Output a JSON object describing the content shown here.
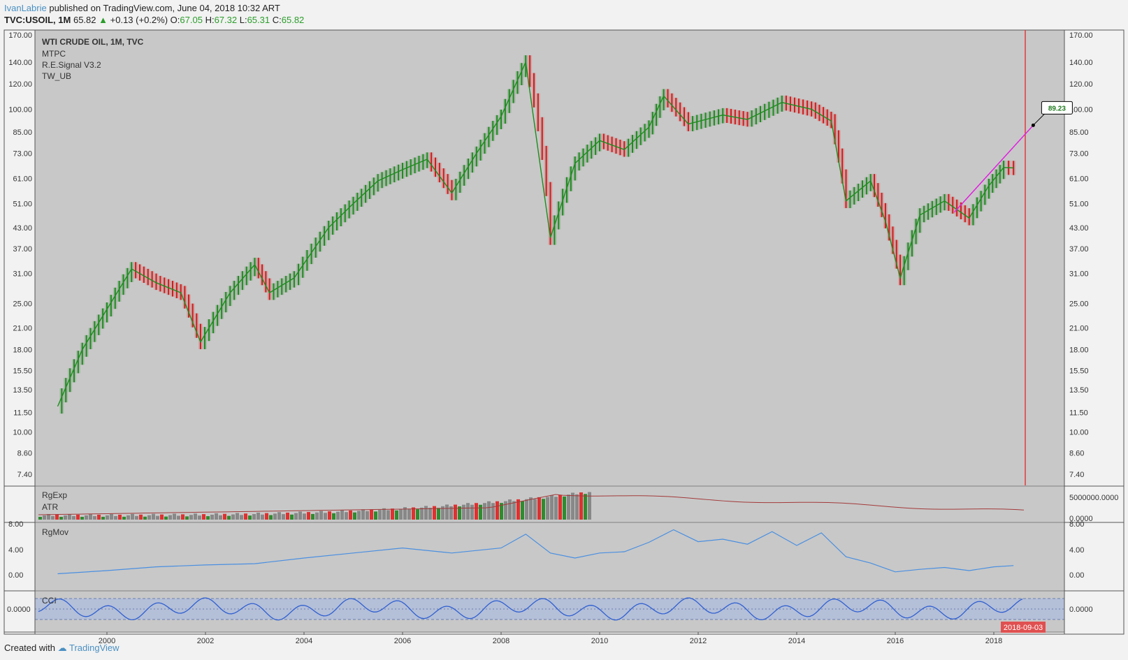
{
  "header": {
    "author": "IvanLabrie",
    "published_text": "published on TradingView.com, June 04, 2018 10:32 ART",
    "symbol_line_prefix": "TVC:USOIL, 1M",
    "last": "65.82",
    "change": "+0.13 (+0.2%)",
    "o_label": "O:",
    "o_value": "67.05",
    "h_label": "H:",
    "h_value": "67.32",
    "l_label": "L:",
    "l_value": "65.31",
    "c_label": "C:",
    "c_value": "65.82"
  },
  "legend": {
    "title": "WTI CRUDE OIL, 1M, TVC",
    "indicators": [
      "MTPC",
      "R.E.Signal V3.2",
      "TW_UB"
    ]
  },
  "panes": {
    "rgexp_label": "RgExp",
    "atr_label": "ATR",
    "rgexp_ticks": [
      "5000000.0000",
      "0.0000"
    ],
    "rgmov_label": "RgMov",
    "rgmov_ticks": [
      "8.00",
      "4.00",
      "0.00"
    ],
    "cci_label": "CCI",
    "cci_tick": "0.0000"
  },
  "target_label": "89.23",
  "date_badge": "2018-09-03",
  "footer": {
    "created_with": "Created with",
    "brand": "TradingView"
  },
  "colors": {
    "up": "#1e8c1e",
    "down": "#d01c1c",
    "neutral": "#222222",
    "target": "#e020e0",
    "vline": "#e03a3a",
    "rgmov": "#4a8fe0",
    "atr": "#a33a3a"
  },
  "chart_data": {
    "type": "line",
    "price_axis_ticks": [
      "170.00",
      "140.00",
      "120.00",
      "100.00",
      "85.00",
      "73.00",
      "61.00",
      "51.00",
      "43.00",
      "37.00",
      "31.00",
      "25.00",
      "21.00",
      "18.00",
      "15.50",
      "13.50",
      "11.50",
      "10.00",
      "8.60",
      "7.40"
    ],
    "x_ticks": [
      "2000",
      "2002",
      "2004",
      "2006",
      "2008",
      "2010",
      "2012",
      "2014",
      "2016",
      "2018"
    ],
    "price_scale": "log",
    "grid": false,
    "series": [
      {
        "name": "WTI CRUDE OIL",
        "x": [
          1999.0,
          1999.5,
          2000.0,
          2000.5,
          2001.0,
          2001.5,
          2001.9,
          2002.5,
          2003.0,
          2003.3,
          2003.8,
          2004.5,
          2005.0,
          2005.5,
          2006.0,
          2006.5,
          2007.0,
          2007.5,
          2008.0,
          2008.5,
          2009.0,
          2009.5,
          2010.0,
          2010.5,
          2011.0,
          2011.3,
          2011.8,
          2012.5,
          2013.0,
          2013.7,
          2014.3,
          2014.7,
          2015.0,
          2015.5,
          2015.8,
          2016.1,
          2016.5,
          2017.0,
          2017.5,
          2017.9,
          2018.2,
          2018.4
        ],
        "y": [
          12,
          18,
          24,
          32,
          29,
          27,
          19,
          27,
          33,
          27,
          30,
          43,
          51,
          60,
          65,
          70,
          55,
          73,
          95,
          140,
          40,
          68,
          80,
          75,
          88,
          110,
          90,
          96,
          93,
          105,
          100,
          92,
          52,
          60,
          45,
          30,
          47,
          52,
          46,
          58,
          66,
          65.82
        ]
      },
      {
        "name": "RgMov",
        "x": [
          1999.0,
          2000.0,
          2001.0,
          2002.0,
          2003.0,
          2004.0,
          2005.0,
          2006.0,
          2007.0,
          2007.5,
          2008.0,
          2008.5,
          2009.0,
          2009.5,
          2010.0,
          2010.5,
          2011.0,
          2011.5,
          2012.0,
          2012.5,
          2013.0,
          2013.5,
          2014.0,
          2014.5,
          2015.0,
          2015.5,
          2016.0,
          2016.5,
          2017.0,
          2017.5,
          2018.0,
          2018.4
        ],
        "y": [
          0.5,
          1.0,
          1.6,
          1.9,
          2.1,
          3.0,
          3.8,
          4.6,
          3.8,
          4.2,
          4.6,
          6.8,
          3.8,
          3.0,
          3.8,
          4.0,
          5.5,
          7.5,
          5.6,
          6.0,
          5.2,
          7.2,
          5.0,
          7.0,
          3.2,
          2.2,
          0.8,
          1.2,
          1.5,
          1.0,
          1.6,
          1.8
        ]
      }
    ],
    "target": {
      "from_x": 2017.2,
      "from_y": 48,
      "to_x": 2018.8,
      "to_y": 89.23
    }
  }
}
